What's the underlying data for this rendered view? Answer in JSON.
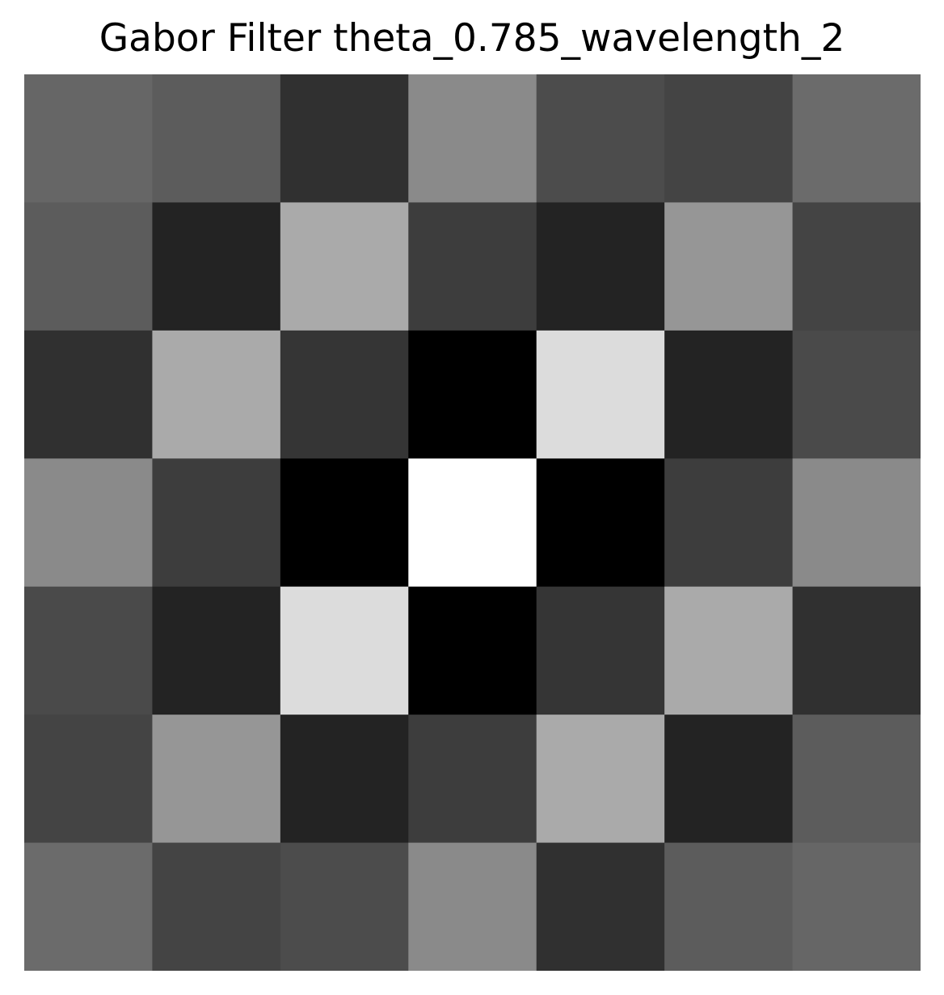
{
  "chart_data": {
    "type": "heatmap",
    "title": "Gabor Filter theta_0.785_wavelength_2",
    "colormap": "gray",
    "axes_visible": false,
    "grid": false,
    "rows": 7,
    "cols": 7,
    "values": [
      [
        0.4,
        0.361,
        0.188,
        0.541,
        0.298,
        0.267,
        0.42
      ],
      [
        0.361,
        0.137,
        0.667,
        0.239,
        0.137,
        0.588,
        0.267
      ],
      [
        0.188,
        0.667,
        0.208,
        0.0,
        0.863,
        0.137,
        0.29
      ],
      [
        0.541,
        0.239,
        0.0,
        1.0,
        0.0,
        0.239,
        0.541
      ],
      [
        0.29,
        0.137,
        0.863,
        0.0,
        0.208,
        0.667,
        0.188
      ],
      [
        0.267,
        0.588,
        0.137,
        0.239,
        0.667,
        0.137,
        0.361
      ],
      [
        0.42,
        0.267,
        0.298,
        0.541,
        0.188,
        0.361,
        0.4
      ]
    ]
  }
}
